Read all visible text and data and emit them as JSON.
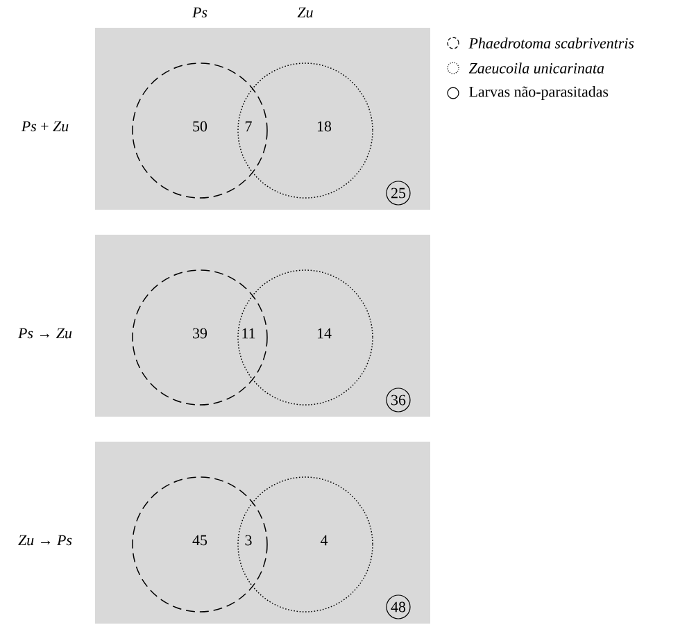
{
  "chart_data": [
    {
      "type": "other",
      "ylabel": "*Ps* + *Zu*",
      "annotations": [
        "*Ps*",
        "*Zu*"
      ],
      "categories": [
        null,
        null,
        null,
        null
      ],
      "values": [
        50,
        7,
        18,
        25
      ],
      "data_labels": true
    },
    {
      "type": "other",
      "ylabel": "*Ps* → *Zu*",
      "categories": [
        null,
        null,
        null,
        null
      ],
      "values": [
        39,
        11,
        14,
        36
      ],
      "data_labels": true
    },
    {
      "type": "other",
      "ylabel": "*Zu* → *Ps*",
      "categories": [
        null,
        null,
        null,
        null
      ],
      "values": [
        45,
        3,
        4,
        48
      ],
      "data_labels": true
    },
    {
      "type": "other",
      "annotations": [
        "*Phaedrotoma scabriventris*",
        "*Zaeucoila unicarinata*",
        "Larvas não-parasitadas"
      ]
    }
  ]
}
